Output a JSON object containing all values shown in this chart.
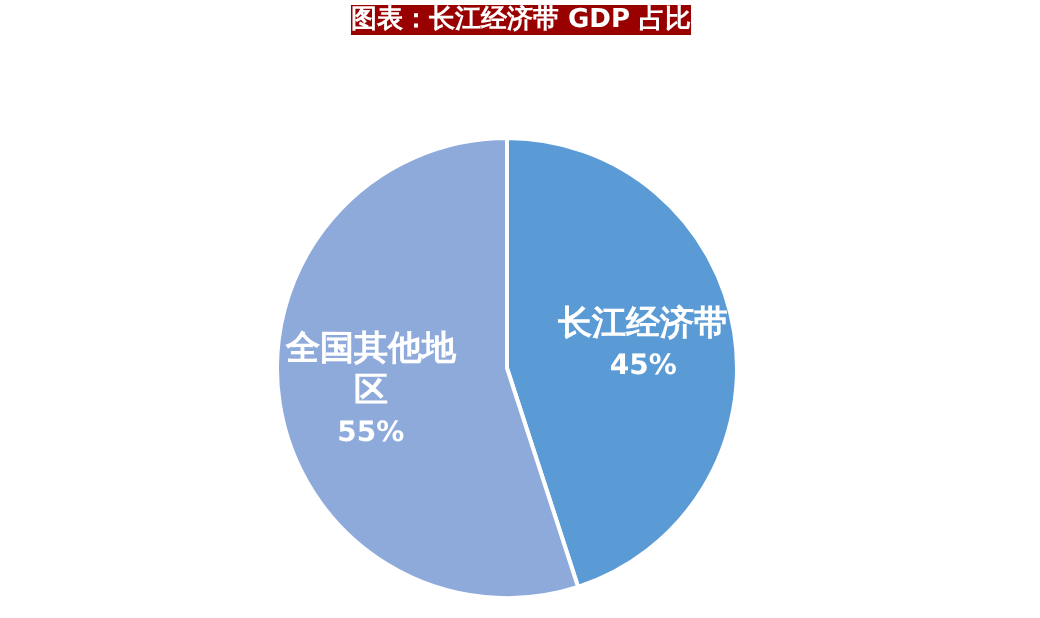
{
  "chart_data": {
    "type": "pie",
    "title": "图表：长江经济带 GDP 占比",
    "categories": [
      "长江经济带",
      "全国其他地区"
    ],
    "values": [
      45,
      55
    ],
    "colors": [
      "#5b9bd5",
      "#8eaadb"
    ],
    "value_labels": [
      "45%",
      "55%"
    ]
  }
}
